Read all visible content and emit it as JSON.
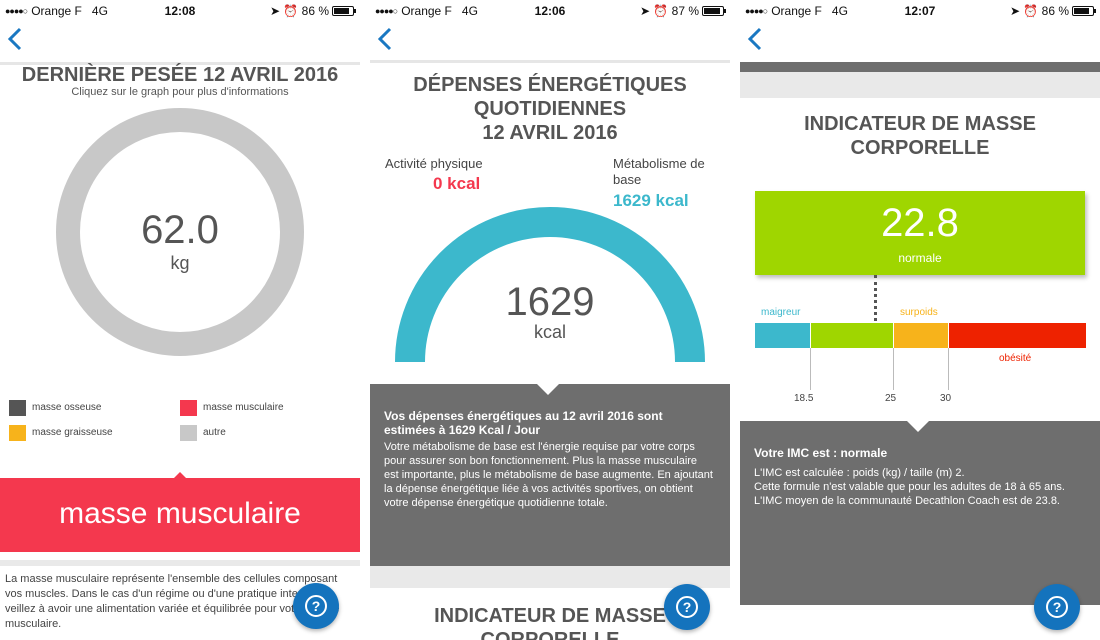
{
  "colors": {
    "accent_blue": "#1473bd",
    "red": "#f4384e",
    "teal": "#3cb8cc",
    "green": "#9fd600",
    "orange": "#f7b31b",
    "dark_gray": "#555555",
    "light_gray": "#c8c8c8",
    "info_bg": "#6e6e6e"
  },
  "screens": [
    {
      "status": {
        "carrier": "Orange F",
        "network": "4G",
        "time": "12:08",
        "battery": "86 %",
        "battery_level": 0.86
      },
      "title": "DERNIÈRE PESÉE 12 AVRIL 2016",
      "subtitle": "Cliquez sur le graph pour plus d'informations",
      "weight": {
        "value": "62.0",
        "unit": "kg"
      },
      "legend": [
        {
          "label": "masse osseuse",
          "color": "#555555"
        },
        {
          "label": "masse musculaire",
          "color": "#f4384e"
        },
        {
          "label": "masse graisseuse",
          "color": "#f7b31b"
        },
        {
          "label": "autre",
          "color": "#c8c8c8"
        }
      ],
      "selected": "masse musculaire",
      "description": "La masse musculaire représente l'ensemble des cellules composant vos muscles. Dans le cas d'un régime ou d'une pratique intensive, veillez à avoir une alimentation variée et équilibrée pour votre masse musculaire."
    },
    {
      "status": {
        "carrier": "Orange F",
        "network": "4G",
        "time": "12:06",
        "battery": "87 %",
        "battery_level": 0.87
      },
      "title_lines": [
        "DÉPENSES ÉNERGÉTIQUES",
        "QUOTIDIENNES",
        "12 AVRIL 2016"
      ],
      "activity": {
        "label": "Activité physique",
        "value": "0 kcal"
      },
      "metabolism": {
        "label": "Métabolisme de base",
        "value": "1629 kcal"
      },
      "total": {
        "value": "1629",
        "unit": "kcal"
      },
      "info_title": "Vos dépenses énergétiques au 12 avril 2016 sont estimées à 1629 Kcal / Jour",
      "info_body": "Votre métabolisme de base est l'énergie requise par votre corps pour assurer son bon fonctionnement. Plus la masse musculaire est importante, plus le métabolisme de base augmente. En ajoutant la dépense énergétique liée à vos activités sportives, on obtient votre dépense énergétique quotidienne totale.",
      "next_title": "INDICATEUR DE MASSE CORPORELLE"
    },
    {
      "status": {
        "carrier": "Orange F",
        "network": "4G",
        "time": "12:07",
        "battery": "86 %",
        "battery_level": 0.86
      },
      "title_lines": [
        "INDICATEUR DE MASSE",
        "CORPORELLE"
      ],
      "imc": {
        "value": "22.8",
        "category": "normale"
      },
      "scale": {
        "segments": [
          {
            "label": "maigreur",
            "color": "#3cb8cc"
          },
          {
            "label": "",
            "color": "#9fd600"
          },
          {
            "label": "surpoids",
            "color": "#f7b31b"
          },
          {
            "label": "obésité",
            "color": "#ee2200"
          }
        ],
        "ticks": [
          "18.5",
          "25",
          "30"
        ]
      },
      "info_title": "Votre IMC est : normale",
      "info_lines": [
        "L'IMC est calculée : poids (kg) / taille (m) 2.",
        "Cette formule n'est valable que pour les adultes de 18 à 65 ans.",
        "L'IMC moyen de la communauté Decathlon Coach est de 23.8."
      ]
    }
  ]
}
